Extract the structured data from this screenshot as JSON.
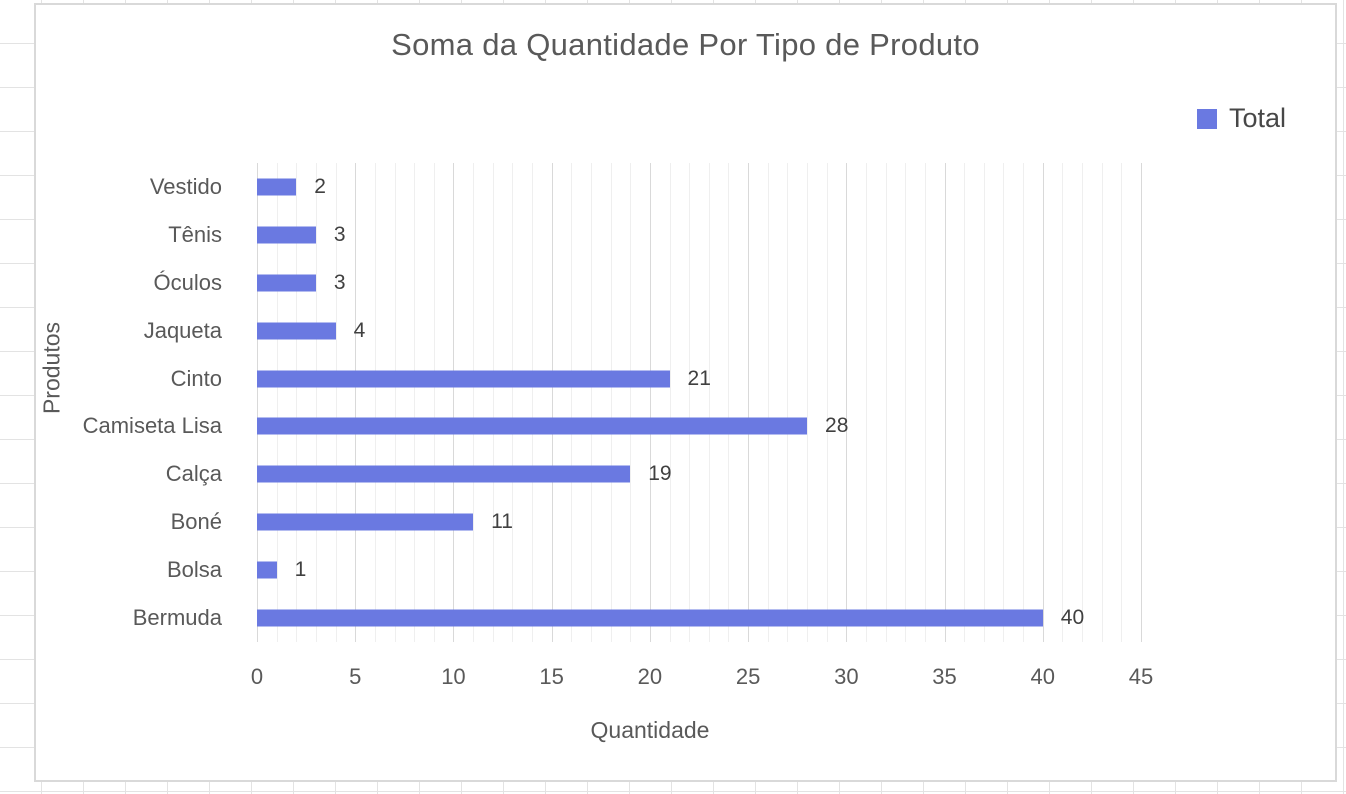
{
  "chart_data": {
    "type": "bar",
    "orientation": "horizontal",
    "title": "Soma da Quantidade Por Tipo de Produto",
    "categories": [
      "Vestido",
      "Tênis",
      "Óculos",
      "Jaqueta",
      "Cinto",
      "Camiseta Lisa",
      "Calça",
      "Boné",
      "Bolsa",
      "Bermuda"
    ],
    "series": [
      {
        "name": "Total",
        "values": [
          2,
          3,
          3,
          4,
          21,
          28,
          19,
          11,
          1,
          40
        ]
      }
    ],
    "data_labels_shown": true,
    "xlabel": "Quantidade",
    "ylabel": "Produtos",
    "xlim": [
      0,
      45
    ],
    "x_ticks": [
      0,
      5,
      10,
      15,
      20,
      25,
      30,
      35,
      40,
      45
    ],
    "minor_grid_step": 1,
    "major_grid_step": 5,
    "grid": "on",
    "legend_position": "top-right"
  },
  "colors": {
    "bar": "#6a79e1",
    "title_text": "#595959",
    "axis_text": "#595959",
    "value_label_text": "#404040",
    "legend_text": "#474747",
    "minor_gridline": "#efefef",
    "major_gridline": "#d9d9d9",
    "chart_border": "#d9d9d9",
    "sheet_gridline": "#e3e3e3"
  }
}
